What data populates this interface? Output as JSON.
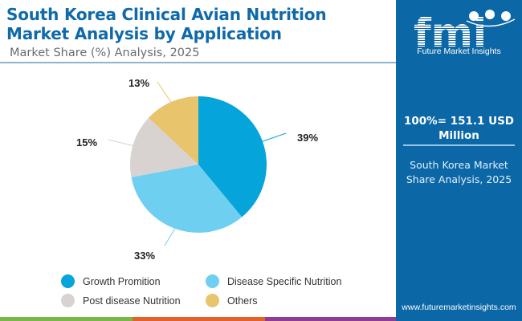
{
  "header": {
    "title": "South Korea Clinical Avian Nutrition Market Analysis by Application",
    "subtitle": "Market Share (%) Analysis, 2025"
  },
  "panel": {
    "logo_mark": "fmi",
    "logo_text": "Future Market Insights",
    "total": "100%= 151.1 USD Million",
    "description": "South Korea Market Share Analysis, 2025",
    "url": "www.futuremarketinsights.com",
    "bg_color": "#0b67a6"
  },
  "chart_data": {
    "type": "pie",
    "title": "South Korea Clinical Avian Nutrition Market Analysis by Application",
    "subtitle": "Market Share (%) Analysis, 2025",
    "unit": "%",
    "start_angle": "12 o'clock, clockwise",
    "legend_position": "bottom",
    "slices": [
      {
        "label": "Growth Promition",
        "value": 39,
        "display": "39%",
        "color": "#05a4da"
      },
      {
        "label": "Disease Specific Nutrition",
        "value": 33,
        "display": "33%",
        "color": "#6ecff1"
      },
      {
        "label": "Post disease Nutrition",
        "value": 15,
        "display": "15%",
        "color": "#d8d3d0"
      },
      {
        "label": "Others",
        "value": 13,
        "display": "13%",
        "color": "#e8c46c"
      }
    ]
  },
  "footer_bar": [
    "#7ab648",
    "#e2622b",
    "#8e3c97"
  ]
}
